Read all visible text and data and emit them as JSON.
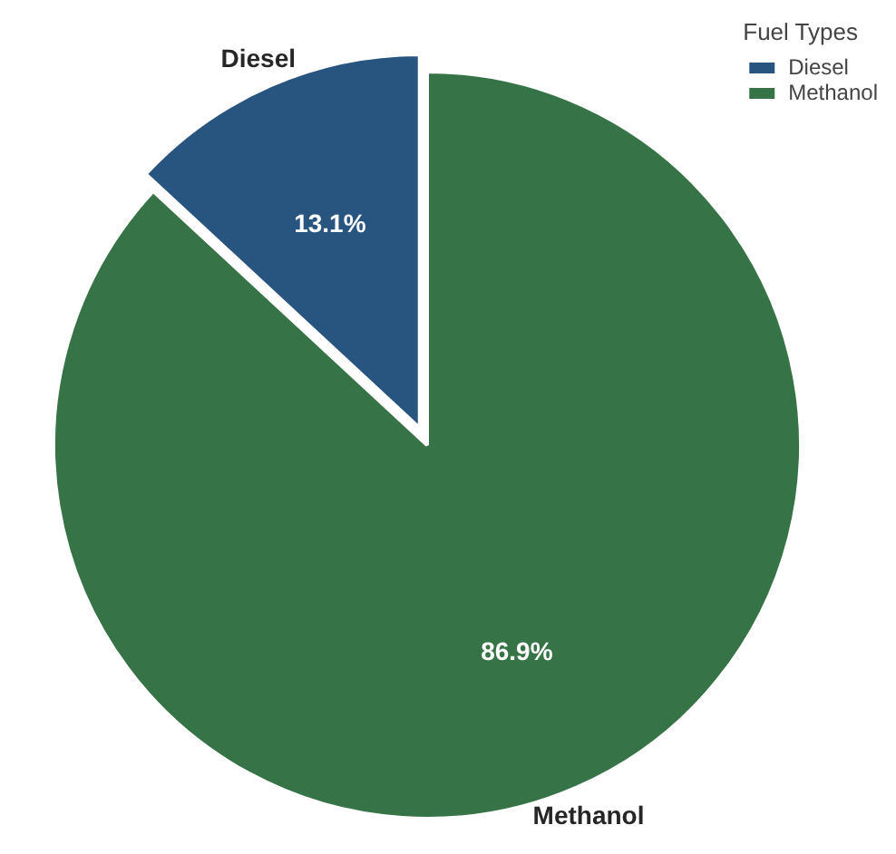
{
  "chart_data": {
    "type": "pie",
    "legend_title": "Fuel Types",
    "categories": [
      "Diesel",
      "Methanol"
    ],
    "values": [
      13.1,
      86.9
    ],
    "colors": [
      "#285580",
      "#367346"
    ],
    "value_labels": [
      "13.1%",
      "86.9%"
    ],
    "legend": "top right"
  }
}
